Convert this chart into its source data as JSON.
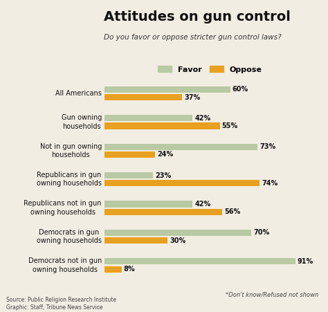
{
  "title": "Attitudes on gun control",
  "subtitle": "Do you favor or oppose stricter gun control laws?",
  "categories": [
    "All Americans",
    "Gun owning\nhouseholds",
    "Not in gun owning\nhouseholds",
    "Republicans in gun\nowning households",
    "Republicans not in gun\nowning households",
    "Democrats in gun\nowning households",
    "Democrats not in gun\nowning households"
  ],
  "favor_values": [
    60,
    42,
    73,
    23,
    42,
    70,
    91
  ],
  "oppose_values": [
    37,
    55,
    24,
    74,
    56,
    30,
    8
  ],
  "favor_color": "#b8c9a3",
  "oppose_color": "#e8a020",
  "background_color": "#f2ede3",
  "title_bg_color": "#ffffff",
  "title_color": "#111111",
  "subtitle_color": "#333333",
  "value_color": "#111111",
  "source_text": "Source: Public Religion Research Institute\nGraphic: Staff, Tribune News Service",
  "footnote": "*Don't know/Refused not shown"
}
